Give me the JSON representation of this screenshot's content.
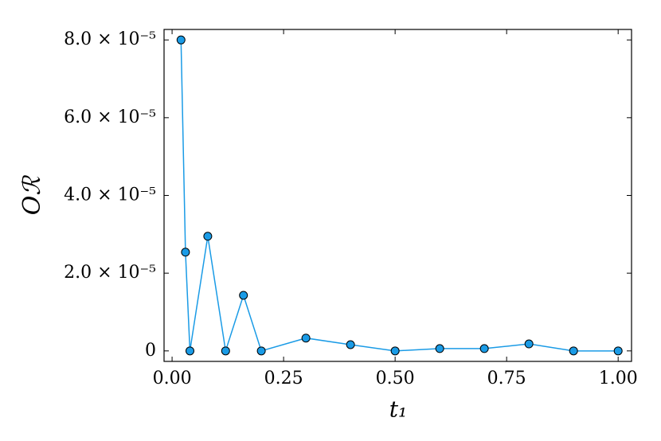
{
  "chart_data": {
    "type": "line",
    "xlabel": "t₁",
    "ylabel": "Oℛ",
    "x": [
      0.02,
      0.03,
      0.04,
      0.08,
      0.12,
      0.16,
      0.2,
      0.3,
      0.4,
      0.5,
      0.6,
      0.7,
      0.8,
      0.9,
      1.0
    ],
    "series": [
      {
        "name": "Oℛ",
        "color": "#1a9be6",
        "values": [
          8e-05,
          2.54e-05,
          0,
          2.95e-05,
          0,
          1.43e-05,
          0,
          3.3e-06,
          1.6e-06,
          0,
          6e-07,
          6e-07,
          1.8e-06,
          0,
          0
        ]
      }
    ],
    "xlim": [
      -0.018,
      1.03
    ],
    "ylim": [
      -2.7e-06,
      8.27e-05
    ],
    "xticks": [
      {
        "value": 0,
        "label": "0.00"
      },
      0.25,
      {
        "value": 0.5,
        "label": "0.50"
      },
      0.75,
      {
        "value": 1,
        "label": "1.00"
      }
    ],
    "yticks": [
      0,
      {
        "value": 2e-05,
        "label": "2.0 × 10⁻⁵"
      },
      {
        "value": 4e-05,
        "label": "4.0 × 10⁻⁵"
      },
      {
        "value": 6e-05,
        "label": "6.0 × 10⁻⁵"
      },
      {
        "value": 8e-05,
        "label": "8.0 × 10⁻⁵"
      }
    ],
    "grid": false
  }
}
